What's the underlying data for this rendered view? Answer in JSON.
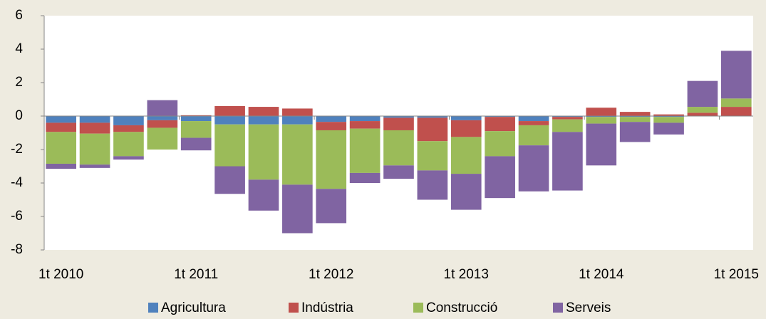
{
  "chart_data": {
    "type": "stacked_bar",
    "categories": [
      "1t 2010",
      null,
      null,
      null,
      "1t 2011",
      null,
      null,
      null,
      "1t 2012",
      null,
      null,
      null,
      "1t 2013",
      null,
      null,
      null,
      "1t 2014",
      null,
      null,
      null,
      "1t 2015"
    ],
    "series": [
      {
        "name": "Agricultura",
        "color": "#4f81bd",
        "values": [
          -0.4,
          -0.4,
          -0.55,
          -0.25,
          -0.3,
          -0.5,
          -0.5,
          -0.5,
          -0.35,
          -0.3,
          -0.1,
          -0.1,
          -0.25,
          -0.05,
          -0.3,
          -0.05,
          -0.05,
          -0.05,
          -0.05,
          0,
          0
        ]
      },
      {
        "name": "Indústria",
        "color": "#c0504d",
        "values": [
          -0.55,
          -0.65,
          -0.4,
          -0.45,
          0.05,
          0.6,
          0.55,
          0.45,
          -0.5,
          -0.45,
          -0.75,
          -1.4,
          -1.0,
          -0.85,
          -0.25,
          -0.15,
          0.5,
          0.25,
          0.1,
          0.2,
          0.55
        ]
      },
      {
        "name": "Construcció",
        "color": "#9bbb59",
        "values": [
          -1.9,
          -1.85,
          -1.45,
          -1.3,
          -1.0,
          -2.5,
          -3.3,
          -3.6,
          -3.5,
          -2.65,
          -2.1,
          -1.75,
          -2.2,
          -1.5,
          -1.2,
          -0.75,
          -0.4,
          -0.3,
          -0.35,
          0.35,
          0.5
        ]
      },
      {
        "name": "Serveis",
        "color": "#8064a2",
        "values": [
          -0.3,
          -0.2,
          -0.2,
          0.95,
          -0.75,
          -1.65,
          -1.85,
          -2.9,
          -2.05,
          -0.6,
          -0.8,
          -1.75,
          -2.15,
          -2.5,
          -2.75,
          -3.5,
          -2.5,
          -1.2,
          -0.7,
          1.55,
          2.85
        ]
      }
    ],
    "ylim": [
      -8,
      6
    ],
    "yticks": [
      -8,
      -6,
      -4,
      -2,
      0,
      2,
      4,
      6
    ]
  }
}
